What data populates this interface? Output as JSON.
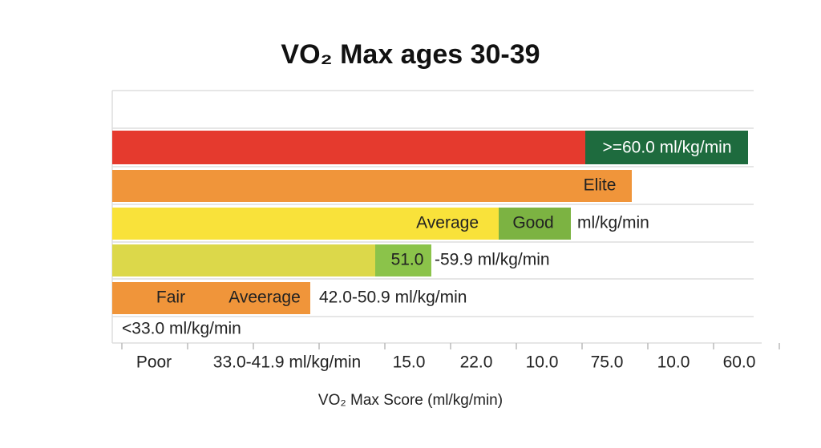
{
  "title": "VO₂ Max ages 30-39",
  "rows": [
    {
      "labels": [
        ">=60.0 ml/kg/min"
      ]
    },
    {
      "labels": [
        "Elite"
      ]
    },
    {
      "labels": [
        "Average",
        "Good",
        "ml/kg/min"
      ]
    },
    {
      "labels": [
        "51.0",
        "-59.9 ml/kg/min"
      ]
    },
    {
      "labels": [
        "Fair",
        "Aveerage",
        "42.0-50.9 ml/kg/min"
      ]
    },
    {
      "labels": [
        "<33.0 ml/kg/min"
      ]
    }
  ],
  "x_labels": [
    "Poor",
    "33.0-41.9 ml/kg/min",
    "15.0",
    "22.0",
    "10.0",
    "75.0",
    "10.0",
    "60.0"
  ],
  "x_axis_title": "VO₂ Max Score (ml/kg/min)"
}
